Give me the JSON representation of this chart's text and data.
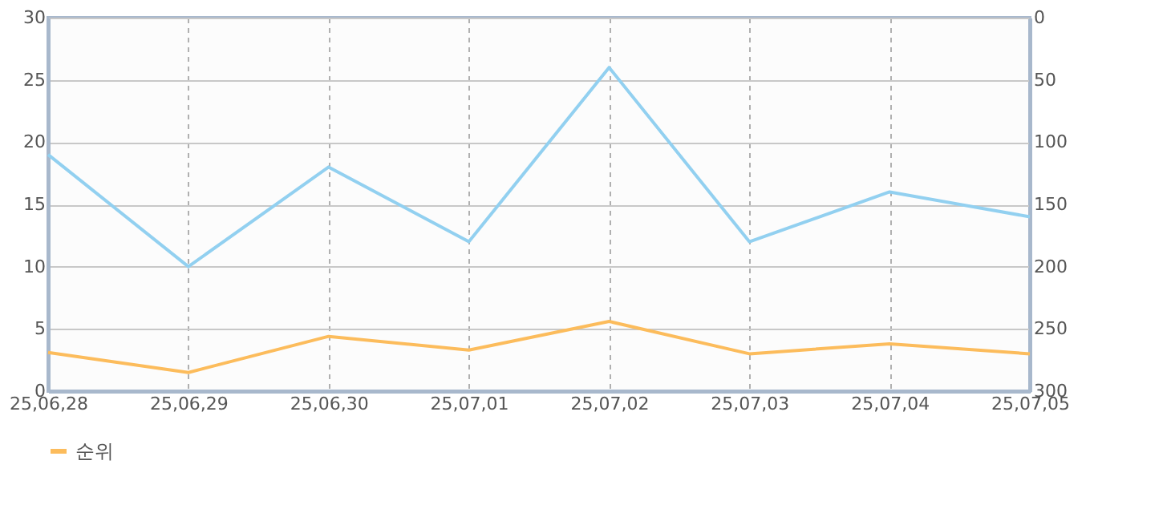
{
  "chart_data": {
    "type": "line",
    "categories": [
      "25,06,28",
      "25,06,29",
      "25,06,30",
      "25,07,01",
      "25,07,02",
      "25,07,03",
      "25,07,04",
      "25,07,05"
    ],
    "series": [
      {
        "color": "#92d0f0",
        "values": [
          19,
          10,
          18,
          12,
          26,
          12,
          16,
          14
        ]
      },
      {
        "name": "순위",
        "color": "#fcbc5c",
        "axis": "y2",
        "values": [
          269,
          285,
          256,
          267,
          244,
          270,
          262,
          270
        ]
      }
    ],
    "ylim": [
      0,
      30
    ],
    "yticks": [
      0,
      5,
      10,
      15,
      20,
      25,
      30
    ],
    "y2lim": [
      300,
      0
    ],
    "y2ticks": [
      0,
      50,
      100,
      150,
      200,
      250,
      300
    ],
    "grid": true,
    "legend": "bottom left",
    "marker": "none",
    "line_style": "solid"
  }
}
